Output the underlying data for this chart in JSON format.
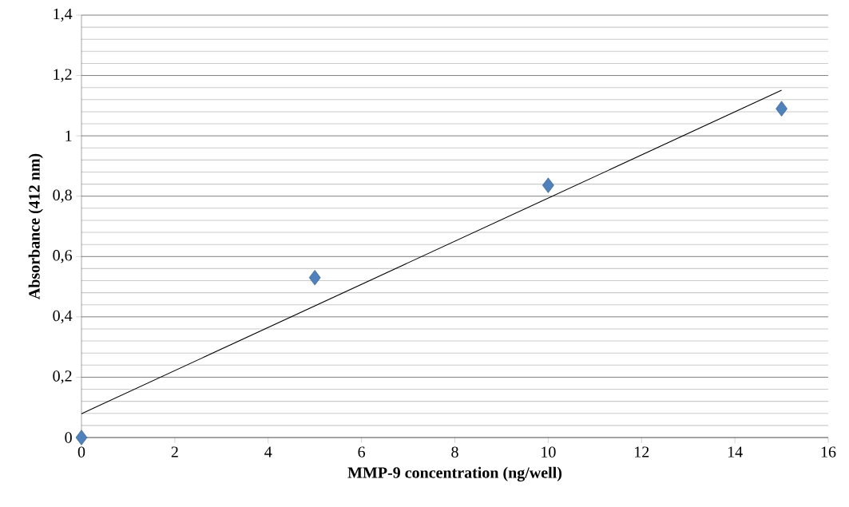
{
  "chart_data": {
    "type": "scatter",
    "xlabel": "MMP-9 concentration (ng/well)",
    "ylabel": "Absorbance (412 nm)",
    "xlim": [
      0,
      16
    ],
    "xticks": [
      0,
      2,
      4,
      6,
      8,
      10,
      12,
      14,
      16
    ],
    "ylim": [
      0,
      1.4
    ],
    "yticks": [
      {
        "value": 0,
        "label": "0"
      },
      {
        "value": 0.04,
        "label": null
      },
      {
        "value": 0.08,
        "label": null
      },
      {
        "value": 0.12,
        "label": null
      },
      {
        "value": 0.16,
        "label": null
      },
      {
        "value": 0.2,
        "label": "0,2"
      },
      {
        "value": 0.24,
        "label": null
      },
      {
        "value": 0.28,
        "label": null
      },
      {
        "value": 0.32,
        "label": null
      },
      {
        "value": 0.36,
        "label": null
      },
      {
        "value": 0.4,
        "label": "0,4"
      },
      {
        "value": 0.44,
        "label": null
      },
      {
        "value": 0.48,
        "label": null
      },
      {
        "value": 0.52,
        "label": null
      },
      {
        "value": 0.56,
        "label": null
      },
      {
        "value": 0.6,
        "label": "0,6"
      },
      {
        "value": 0.64,
        "label": null
      },
      {
        "value": 0.68,
        "label": null
      },
      {
        "value": 0.72,
        "label": null
      },
      {
        "value": 0.76,
        "label": null
      },
      {
        "value": 0.8,
        "label": "0,8"
      },
      {
        "value": 0.84,
        "label": null
      },
      {
        "value": 0.88,
        "label": null
      },
      {
        "value": 0.92,
        "label": null
      },
      {
        "value": 0.96,
        "label": null
      },
      {
        "value": 1,
        "label": "1"
      },
      {
        "value": 1.04,
        "label": null
      },
      {
        "value": 1.08,
        "label": null
      },
      {
        "value": 1.12,
        "label": null
      },
      {
        "value": 1.16,
        "label": null
      },
      {
        "value": 1.2,
        "label": "1,2"
      },
      {
        "value": 1.24,
        "label": null
      },
      {
        "value": 1.28,
        "label": null
      },
      {
        "value": 1.32,
        "label": null
      },
      {
        "value": 1.36,
        "label": null
      },
      {
        "value": 1.4,
        "label": "1,4"
      }
    ],
    "grid": "y",
    "legend": false,
    "series": [
      {
        "type": "line",
        "color": "#000000",
        "marker": "none",
        "line_style": "solid",
        "x": [
          0,
          15
        ],
        "values": [
          0.079,
          1.151
        ]
      },
      {
        "color": "#4f81bd",
        "marker": "diamond",
        "x": [
          0,
          5,
          10,
          15
        ],
        "values": [
          0,
          0.53,
          0.836,
          1.09
        ]
      }
    ]
  }
}
